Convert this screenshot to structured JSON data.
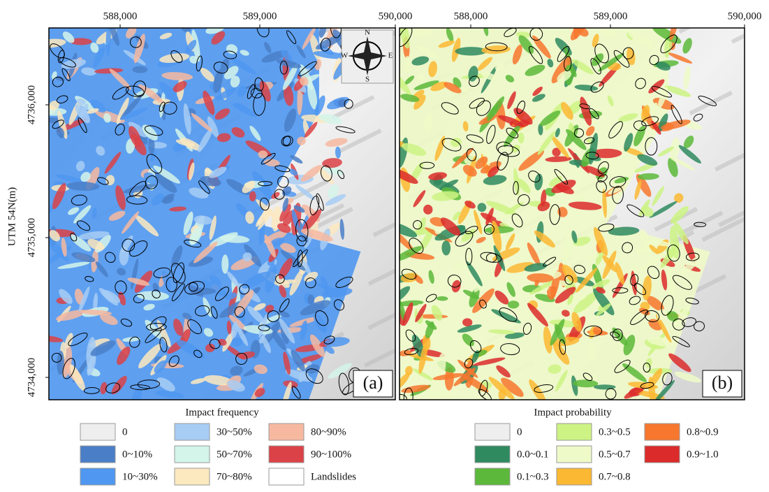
{
  "x_ticks": [
    "588,000",
    "589,000",
    "590,000"
  ],
  "y_axis_label": "UTM 54N(m)",
  "y_ticks": [
    "4736,000",
    "4735,000",
    "4734,000"
  ],
  "compass": {
    "n": "N",
    "e": "E",
    "s": "S",
    "w": "W"
  },
  "panels": [
    {
      "label": "(a)",
      "legend_title": "Impact frequency",
      "legend": [
        {
          "label": "0",
          "color": "#eeeeee"
        },
        {
          "label": "0~10%",
          "color": "#4a7fc8"
        },
        {
          "label": "10~30%",
          "color": "#4f97f0"
        },
        {
          "label": "30~50%",
          "color": "#a7cdf5"
        },
        {
          "label": "50~70%",
          "color": "#d3f5ea"
        },
        {
          "label": "70~80%",
          "color": "#fde9bf"
        },
        {
          "label": "80~90%",
          "color": "#f6b9a0"
        },
        {
          "label": "90~100%",
          "color": "#db4247"
        },
        {
          "label": "Landslides",
          "color": "#ffffff"
        }
      ]
    },
    {
      "label": "(b)",
      "legend_title": "Impact probability",
      "legend": [
        {
          "label": "0",
          "color": "#eeeeee"
        },
        {
          "label": "0.0~0.1",
          "color": "#2f8a5f"
        },
        {
          "label": "0.1~0.3",
          "color": "#5cb83a"
        },
        {
          "label": "0.3~0.5",
          "color": "#cdf384"
        },
        {
          "label": "0.5~0.7",
          "color": "#eefac8"
        },
        {
          "label": "0.7~0.8",
          "color": "#fbb832"
        },
        {
          "label": "0.8~0.9",
          "color": "#f7772e"
        },
        {
          "label": "0.9~1.0",
          "color": "#dc2b2b"
        }
      ]
    }
  ]
}
